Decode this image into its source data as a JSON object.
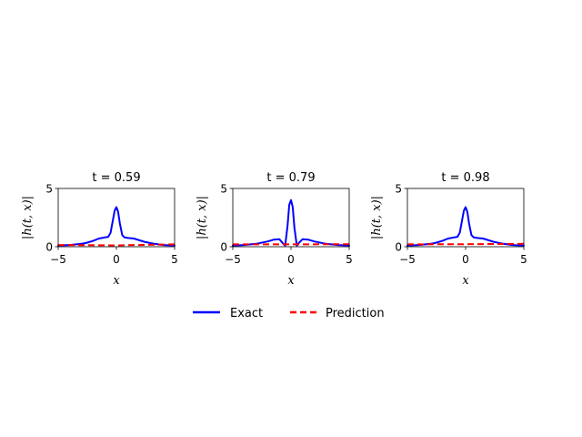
{
  "chart_data": [
    {
      "type": "line",
      "title": "t = 0.59",
      "xlabel": "x",
      "ylabel": "|h(t, x)|",
      "xlim": [
        -5,
        5
      ],
      "ylim": [
        0,
        5
      ],
      "xticks": [
        "−5",
        "0",
        "5"
      ],
      "yticks": [
        "0",
        "5"
      ],
      "grid": false,
      "series": [
        {
          "name": "Exact",
          "color": "#0000ff",
          "style": "solid",
          "x": [
            -5,
            -4,
            -3,
            -2.5,
            -2,
            -1.5,
            -1,
            -0.7,
            -0.5,
            -0.3,
            -0.15,
            0,
            0.15,
            0.3,
            0.5,
            0.7,
            1,
            1.5,
            2,
            2.5,
            3,
            4,
            5
          ],
          "y": [
            0.1,
            0.15,
            0.25,
            0.35,
            0.5,
            0.7,
            0.8,
            0.85,
            1.2,
            2.3,
            3.1,
            3.4,
            3.0,
            2.0,
            1.0,
            0.8,
            0.75,
            0.7,
            0.55,
            0.4,
            0.3,
            0.15,
            0.1
          ]
        },
        {
          "name": "Prediction",
          "color": "#ff0000",
          "style": "dashed",
          "x": [
            -5,
            0,
            5
          ],
          "y": [
            0.15,
            0.12,
            0.2
          ]
        }
      ]
    },
    {
      "type": "line",
      "title": "t = 0.79",
      "xlabel": "x",
      "ylabel": "|h(t, x)|",
      "xlim": [
        -5,
        5
      ],
      "ylim": [
        0,
        5
      ],
      "xticks": [
        "−5",
        "0",
        "5"
      ],
      "yticks": [
        "0",
        "5"
      ],
      "grid": false,
      "series": [
        {
          "name": "Exact",
          "color": "#0000ff",
          "style": "solid",
          "x": [
            -5,
            -4,
            -3,
            -2,
            -1.5,
            -1,
            -0.7,
            -0.5,
            -0.3,
            -0.15,
            0,
            0.15,
            0.3,
            0.5,
            0.7,
            1,
            1.5,
            2,
            3,
            4,
            5
          ],
          "y": [
            0.1,
            0.15,
            0.25,
            0.45,
            0.6,
            0.65,
            0.3,
            0.1,
            1.8,
            3.6,
            4.0,
            3.4,
            1.6,
            0.1,
            0.35,
            0.65,
            0.6,
            0.45,
            0.25,
            0.15,
            0.1
          ]
        },
        {
          "name": "Prediction",
          "color": "#ff0000",
          "style": "dashed",
          "x": [
            -5,
            0,
            5
          ],
          "y": [
            0.2,
            0.2,
            0.22
          ]
        }
      ]
    },
    {
      "type": "line",
      "title": "t = 0.98",
      "xlabel": "x",
      "ylabel": "|h(t, x)|",
      "xlim": [
        -5,
        5
      ],
      "ylim": [
        0,
        5
      ],
      "xticks": [
        "−5",
        "0",
        "5"
      ],
      "yticks": [
        "0",
        "5"
      ],
      "grid": false,
      "series": [
        {
          "name": "Exact",
          "color": "#0000ff",
          "style": "solid",
          "x": [
            -5,
            -4,
            -3,
            -2.5,
            -2,
            -1.5,
            -1,
            -0.7,
            -0.5,
            -0.3,
            -0.15,
            0,
            0.15,
            0.3,
            0.5,
            0.7,
            1,
            1.5,
            2,
            2.5,
            3,
            4,
            5
          ],
          "y": [
            0.1,
            0.15,
            0.25,
            0.35,
            0.5,
            0.7,
            0.8,
            0.85,
            1.2,
            2.3,
            3.1,
            3.4,
            3.0,
            2.0,
            1.0,
            0.8,
            0.75,
            0.7,
            0.55,
            0.4,
            0.3,
            0.15,
            0.1
          ]
        },
        {
          "name": "Prediction",
          "color": "#ff0000",
          "style": "dashed",
          "x": [
            -5,
            0,
            5
          ],
          "y": [
            0.2,
            0.22,
            0.25
          ]
        }
      ]
    }
  ],
  "legend": {
    "placement": "bottom-center",
    "entries": [
      {
        "label": "Exact",
        "color": "#0000ff",
        "style": "solid"
      },
      {
        "label": "Prediction",
        "color": "#ff0000",
        "style": "dashed"
      }
    ]
  }
}
